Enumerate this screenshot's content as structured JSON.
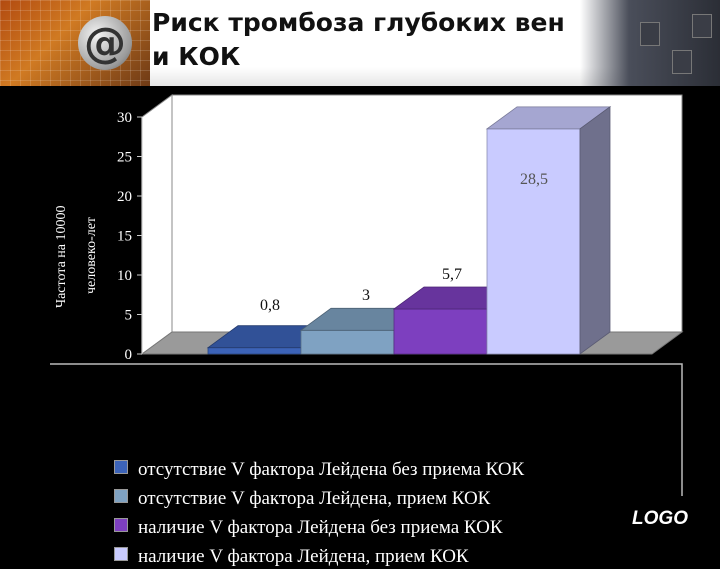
{
  "slide": {
    "title": "Риск тромбоза глубоких вен\nи КОК",
    "logo_text": "LOGO"
  },
  "colors": {
    "series": [
      "#3c63b8",
      "#7fa2c2",
      "#7d3fbf",
      "#c9cbff"
    ]
  },
  "chart_data": {
    "type": "bar",
    "style": "3d",
    "ylabel": "Частота на 10000 человеко-лет",
    "ylabel_lines": [
      "Частота на 10000",
      "человеко-лет"
    ],
    "ylim": [
      0,
      30
    ],
    "yticks": [
      "0",
      "5",
      "10",
      "15",
      "20",
      "25",
      "30"
    ],
    "grid": false,
    "legend_position": "bottom",
    "series": [
      {
        "name": "отсутствие V фактора Лейдена без приема КОК",
        "value": 0.8,
        "label": "0,8"
      },
      {
        "name": "отсутствие V фактора Лейдена, прием КОК",
        "value": 3,
        "label": "3"
      },
      {
        "name": "наличие V фактора Лейдена без приема КОК",
        "value": 5.7,
        "label": "5,7"
      },
      {
        "name": "наличие V фактора Лейдена,  прием КОК",
        "value": 28.5,
        "label": "28,5"
      }
    ]
  }
}
